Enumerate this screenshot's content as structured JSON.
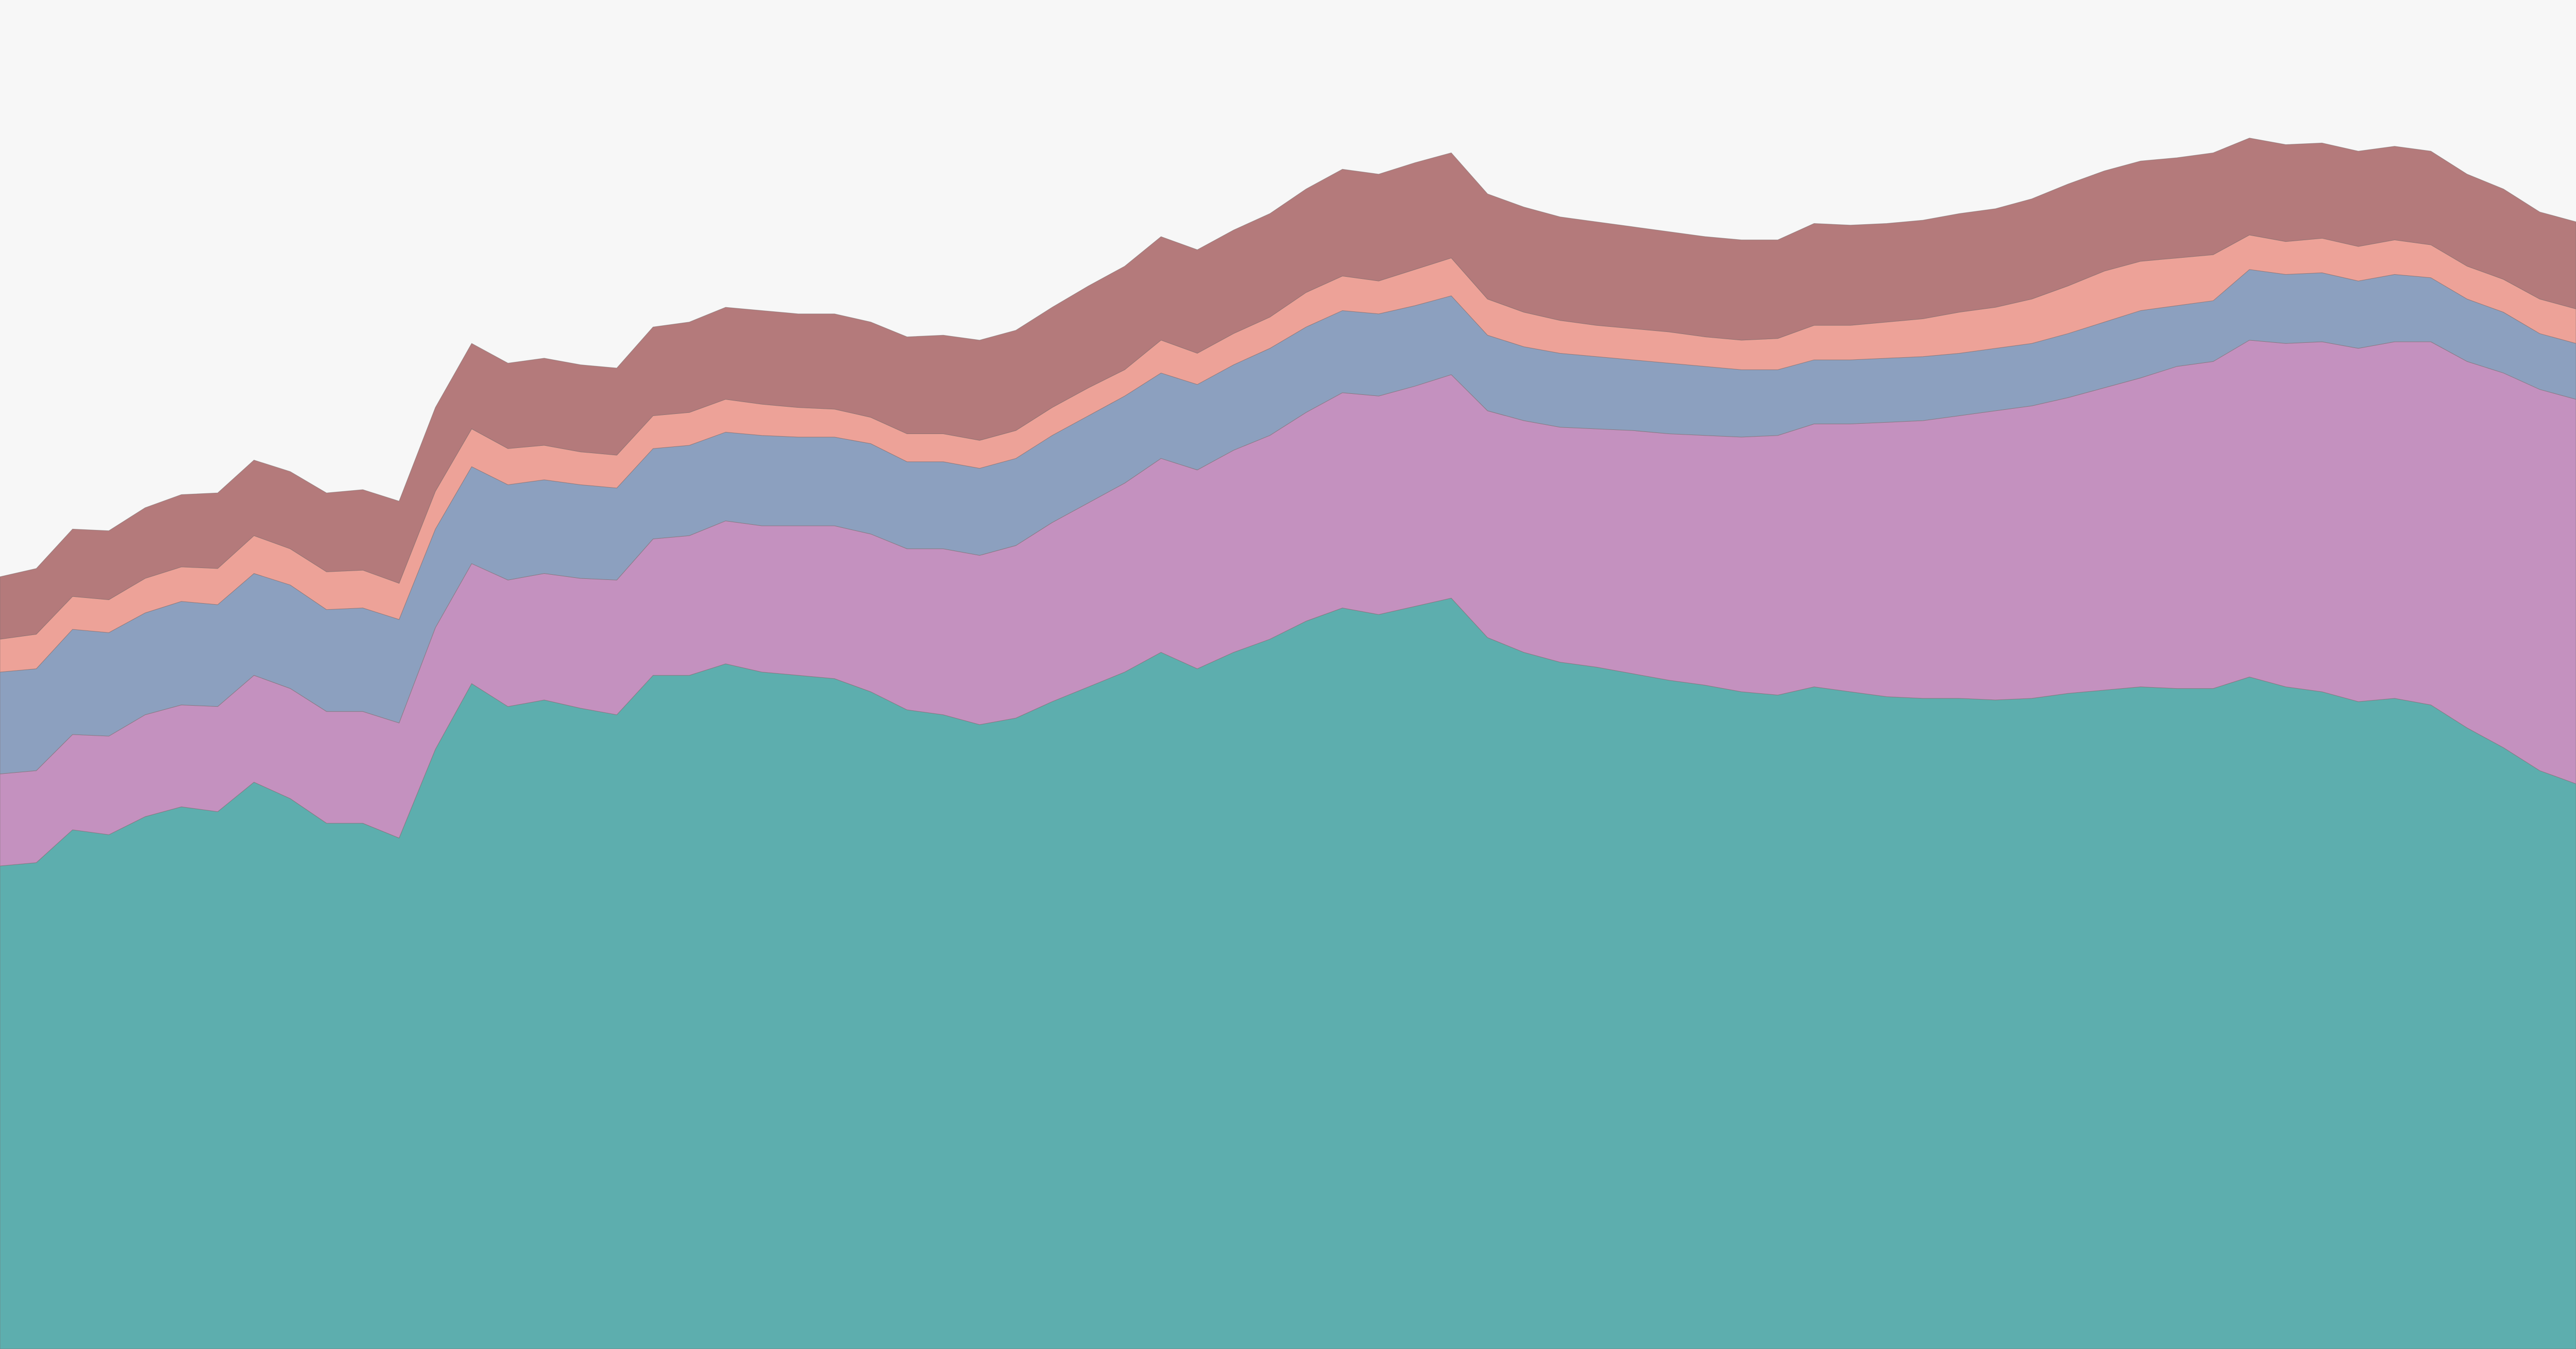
{
  "chart_data": {
    "type": "area",
    "stacked": true,
    "background": "#f7f7f7",
    "categories": [
      null,
      null,
      null,
      null,
      null,
      null,
      null,
      null,
      null,
      null,
      null,
      null,
      null,
      null,
      null,
      null,
      null,
      null,
      null,
      null,
      null,
      null,
      null,
      null,
      null,
      null,
      null,
      null,
      null,
      null,
      null,
      null,
      null,
      null,
      null,
      null,
      null,
      null,
      null,
      null,
      null,
      null,
      null,
      null,
      null,
      null,
      null,
      null,
      null,
      null,
      null,
      null,
      null,
      null,
      null,
      null,
      null,
      null,
      null,
      null,
      null,
      null,
      null,
      null,
      null,
      null,
      null,
      null,
      null,
      null,
      null,
      null
    ],
    "ylim": [
      0,
      821
    ],
    "series": [
      {
        "color": "#5daeae",
        "values": [
          294,
          296,
          316,
          313,
          324,
          330,
          327,
          345,
          335,
          320,
          320,
          311,
          365,
          405,
          391,
          395,
          390,
          386,
          410,
          410,
          417,
          412,
          410,
          408,
          400,
          389,
          386,
          380,
          384,
          394,
          403,
          412,
          424,
          414,
          424,
          432,
          443,
          451,
          447,
          452,
          457,
          433,
          424,
          418,
          415,
          411,
          407,
          404,
          400,
          398,
          403,
          400,
          397,
          396,
          396,
          395,
          396,
          399,
          401,
          403,
          402,
          402,
          409,
          403,
          400,
          394,
          396,
          392,
          378,
          366,
          352,
          344
        ]
      },
      {
        "color": "#c491bf",
        "values": [
          56,
          56,
          58,
          60,
          62,
          62,
          64,
          65,
          67,
          68,
          68,
          70,
          74,
          73,
          77,
          77,
          79,
          82,
          83,
          85,
          87,
          89,
          91,
          93,
          96,
          98,
          101,
          103,
          105,
          109,
          112,
          115,
          118,
          121,
          123,
          124,
          127,
          131,
          133,
          134,
          136,
          138,
          141,
          143,
          145,
          148,
          150,
          152,
          155,
          158,
          160,
          163,
          167,
          169,
          172,
          176,
          178,
          180,
          184,
          188,
          196,
          199,
          205,
          209,
          213,
          215,
          217,
          221,
          223,
          228,
          232,
          234
        ]
      },
      {
        "color": "#8ca0bf",
        "values": [
          62,
          62,
          64,
          63,
          62,
          63,
          62,
          62,
          63,
          62,
          63,
          63,
          60,
          59,
          58,
          57,
          57,
          56,
          55,
          55,
          54,
          55,
          54,
          54,
          55,
          53,
          53,
          53,
          53,
          53,
          53,
          53,
          52,
          52,
          52,
          53,
          52,
          50,
          50,
          49,
          48,
          46,
          45,
          45,
          44,
          43,
          43,
          42,
          41,
          40,
          39,
          39,
          39,
          39,
          38,
          38,
          38,
          39,
          40,
          41,
          37,
          37,
          43,
          42,
          42,
          41,
          41,
          39,
          38,
          37,
          34,
          34
        ]
      },
      {
        "color": "#eda298",
        "values": [
          20,
          21,
          20,
          20,
          21,
          21,
          22,
          23,
          22,
          23,
          23,
          22,
          23,
          23,
          22,
          21,
          20,
          20,
          20,
          20,
          20,
          19,
          18,
          17,
          16,
          17,
          17,
          17,
          17,
          17,
          17,
          16,
          20,
          19,
          19,
          19,
          21,
          21,
          20,
          22,
          23,
          22,
          21,
          20,
          19,
          19,
          19,
          18,
          18,
          19,
          21,
          21,
          22,
          23,
          25,
          25,
          27,
          29,
          31,
          30,
          29,
          28,
          21,
          20,
          21,
          21,
          21,
          20,
          20,
          20,
          21,
          21
        ]
      },
      {
        "color": "#b47a7b",
        "values": [
          38,
          40,
          41,
          42,
          43,
          44,
          46,
          46,
          47,
          48,
          49,
          50,
          51,
          52,
          52,
          53,
          53,
          53,
          54,
          55,
          56,
          57,
          57,
          58,
          58,
          59,
          60,
          61,
          61,
          61,
          62,
          63,
          63,
          63,
          63,
          63,
          63,
          65,
          65,
          65,
          64,
          64,
          64,
          63,
          63,
          62,
          61,
          61,
          61,
          60,
          62,
          61,
          60,
          60,
          60,
          60,
          61,
          62,
          61,
          61,
          61,
          62,
          59,
          59,
          58,
          58,
          57,
          57,
          56,
          55,
          53,
          53
        ]
      }
    ]
  }
}
